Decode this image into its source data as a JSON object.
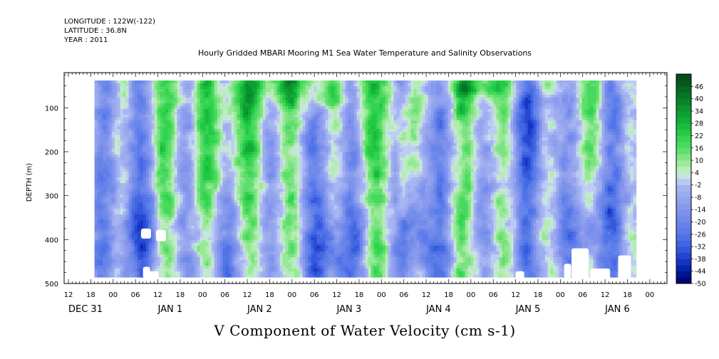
{
  "header": {
    "longitude": "LONGITUDE : 122W(-122)",
    "latitude": "LATITUDE : 36.8N",
    "year": "YEAR : 2011"
  },
  "chart_data": {
    "type": "heatmap",
    "title": "Hourly Gridded MBARI Mooring M1 Sea Water Temperature and Salinity Observations",
    "subtitle": "V Component of Water Velocity (cm s-1)",
    "xlabel": "",
    "ylabel": "DEPTH (m)",
    "x_range_hours": [
      0,
      150
    ],
    "x_data_start_hour": 7,
    "y_range_m": [
      20,
      500
    ],
    "y_reversed": true,
    "y_ticks": [
      100,
      200,
      300,
      400,
      500
    ],
    "x_hour_ticks": [
      "12",
      "18",
      "00",
      "06",
      "12",
      "18",
      "00",
      "06",
      "12",
      "18",
      "00",
      "06",
      "12",
      "18",
      "00",
      "06",
      "12",
      "18",
      "00",
      "06",
      "12",
      "18",
      "00",
      "06",
      "12",
      "18",
      "00"
    ],
    "x_day_labels": [
      "DEC 31",
      "JAN  1",
      "JAN  2",
      "JAN  3",
      "JAN  4",
      "JAN  5",
      "JAN  6"
    ],
    "colorbar": {
      "levels": [
        "46",
        "40",
        "34",
        "28",
        "22",
        "16",
        "10",
        "4",
        "-2",
        "-8",
        "-14",
        "-20",
        "-26",
        "-32",
        "-38",
        "-44",
        "-50"
      ],
      "min": -50,
      "max": 52,
      "step": 3
    },
    "field_components": [
      {
        "hour": 40,
        "depth": 150,
        "value": 22,
        "t_width": 6,
        "d_width": 220
      },
      {
        "hour": 47,
        "depth": 180,
        "value": 18,
        "t_width": 5,
        "d_width": 170
      },
      {
        "hour": 56,
        "depth": 40,
        "value": 20,
        "t_width": 10,
        "d_width": 60
      },
      {
        "hour": 67,
        "depth": 40,
        "value": 20,
        "t_width": 5,
        "d_width": 80
      },
      {
        "hour": 80,
        "depth": 120,
        "value": 16,
        "t_width": 3,
        "d_width": 180
      },
      {
        "hour": 89,
        "depth": 200,
        "value": 18,
        "t_width": 3,
        "d_width": 150
      },
      {
        "hour": 110,
        "depth": 60,
        "value": 18,
        "t_width": 12,
        "d_width": 60
      },
      {
        "hour": 26,
        "depth": 250,
        "value": 6,
        "t_width": 5,
        "d_width": 180
      },
      {
        "hour": 100,
        "depth": 350,
        "value": 6,
        "t_width": 6,
        "d_width": 120
      },
      {
        "hour": 20,
        "depth": 380,
        "value": -16,
        "t_width": 8,
        "d_width": 90
      },
      {
        "hour": 72,
        "depth": 420,
        "value": -20,
        "t_width": 6,
        "d_width": 80
      },
      {
        "hour": 94,
        "depth": 380,
        "value": -22,
        "t_width": 4,
        "d_width": 100
      },
      {
        "hour": 140,
        "depth": 380,
        "value": -24,
        "t_width": 6,
        "d_width": 120
      },
      {
        "hour": 125,
        "depth": 120,
        "value": -16,
        "t_width": 6,
        "d_width": 100
      }
    ],
    "missing_regions_note": "white gaps near 380 m around JAN 1 18h and at the bottom edge"
  }
}
